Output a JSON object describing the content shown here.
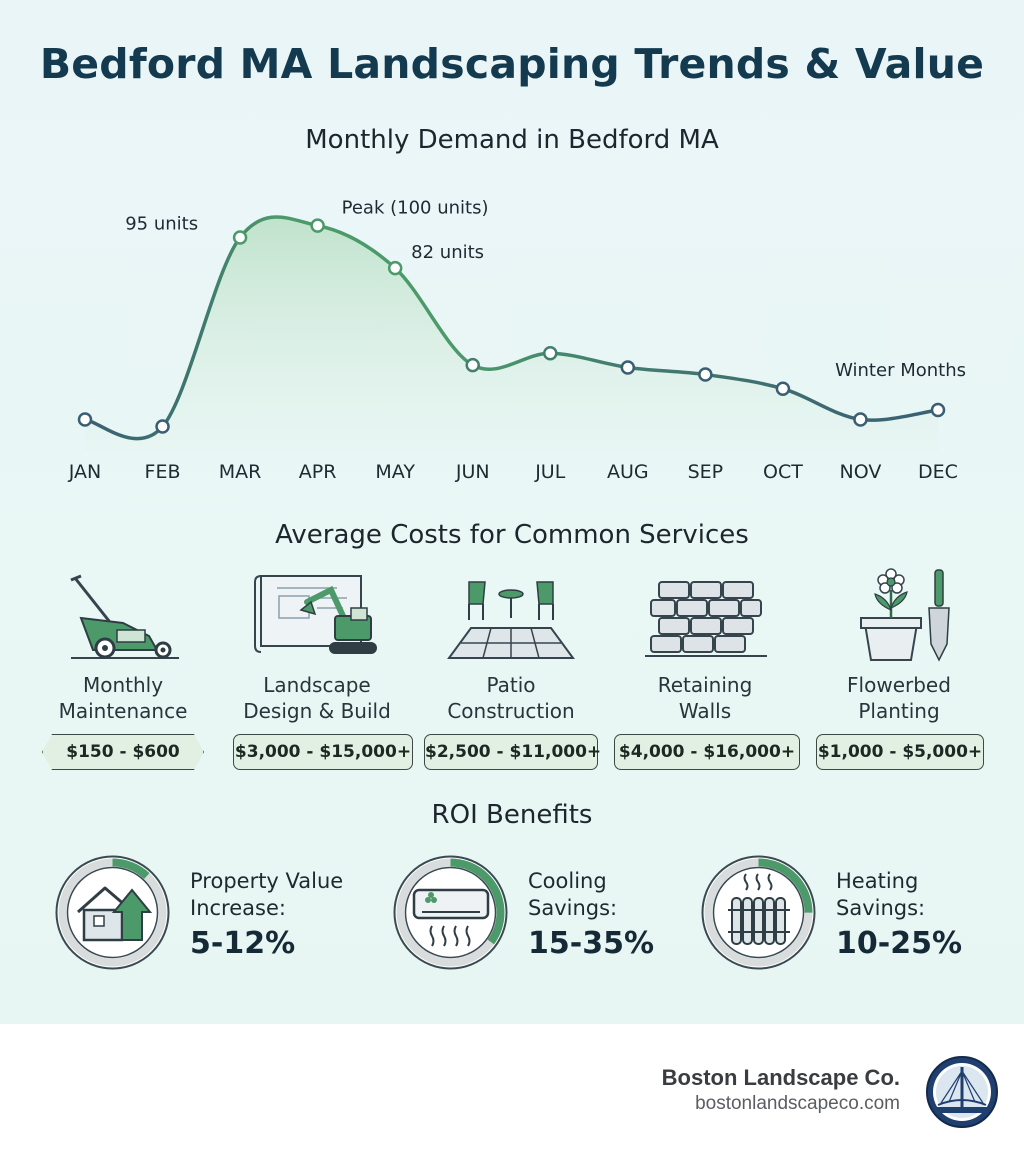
{
  "title": "Bedford MA Landscaping Trends & Value",
  "demand_section_title": "Monthly Demand in Bedford MA",
  "chart_data": {
    "type": "line",
    "title": "Monthly Demand in Bedford MA",
    "categories": [
      "JAN",
      "FEB",
      "MAR",
      "APR",
      "MAY",
      "JUN",
      "JUL",
      "AUG",
      "SEP",
      "OCT",
      "NOV",
      "DEC"
    ],
    "series": [
      {
        "values": [
          18,
          15,
          95,
          100,
          82,
          41,
          46,
          40,
          37,
          31,
          18,
          22
        ]
      }
    ],
    "ylim": [
      0,
      110
    ],
    "grid": false,
    "annotations": [
      {
        "category": "MAR",
        "text": "95 units"
      },
      {
        "category": "APR",
        "text": "Peak (100 units)"
      },
      {
        "category": "MAY",
        "text": "82 units"
      },
      {
        "category": "DEC",
        "text": "Winter Months"
      }
    ],
    "colors": {
      "spring": "#4c9a6a",
      "winter": "#3a5f73",
      "fill": "#cfe9d6"
    }
  },
  "costs_section_title": "Average Costs for Common Services",
  "services": [
    {
      "icon": "lawn-mower-icon",
      "label_line1": "Monthly",
      "label_line2": "Maintenance",
      "price": "$150 - $600"
    },
    {
      "icon": "excavator-blueprint-icon",
      "label_line1": "Landscape",
      "label_line2": "Design & Build",
      "price": "$3,000 - $15,000+"
    },
    {
      "icon": "patio-icon",
      "label_line1": "Patio",
      "label_line2": "Construction",
      "price": "$2,500 - $11,000+"
    },
    {
      "icon": "stone-wall-icon",
      "label_line1": "Retaining",
      "label_line2": "Walls",
      "price": "$4,000 - $16,000+"
    },
    {
      "icon": "flower-pot-trowel-icon",
      "label_line1": "Flowerbed",
      "label_line2": "Planting",
      "price": "$1,000 - $5,000+"
    }
  ],
  "roi_section_title": "ROI Benefits",
  "roi": [
    {
      "icon": "house-arrow-icon",
      "label_line1": "Property Value",
      "label_line2": "Increase:",
      "value": "5-12%",
      "ring_fraction": 0.12
    },
    {
      "icon": "air-conditioner-icon",
      "label_line1": "Cooling",
      "label_line2": "Savings:",
      "value": "15-35%",
      "ring_fraction": 0.35
    },
    {
      "icon": "radiator-icon",
      "label_line1": "Heating",
      "label_line2": "Savings:",
      "value": "10-25%",
      "ring_fraction": 0.25
    }
  ],
  "brand": {
    "name": "Boston Landscape Co.",
    "url": "bostonlandscapeco.com",
    "logo_icon": "bridge-logo-icon"
  },
  "colors": {
    "accent_green": "#4c9a6a",
    "title_navy": "#133a4f",
    "ring_track": "#d9dcdd",
    "price_bg": "#e1f0e3"
  }
}
